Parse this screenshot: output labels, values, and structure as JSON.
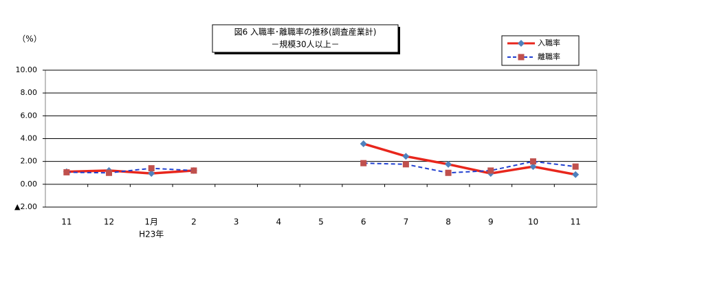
{
  "chart_data": {
    "type": "line",
    "title": "図6 入職率･離職率の推移(調査産業計)",
    "subtitle": "－規模30人以上－",
    "y_label": "（%）",
    "annotations": [
      "H23年"
    ],
    "categories": [
      "11",
      "12",
      "1月",
      "2",
      "3",
      "4",
      "5",
      "6",
      "7",
      "8",
      "9",
      "10",
      "11"
    ],
    "series": [
      {
        "name": "入職率",
        "color": "#e8261c",
        "marker_color": "#4f81bd",
        "marker": "diamond",
        "dash": false,
        "values": [
          1.1,
          1.2,
          0.95,
          1.2,
          null,
          null,
          null,
          3.55,
          2.45,
          1.75,
          0.95,
          1.55,
          0.85
        ]
      },
      {
        "name": "離職率",
        "color": "#1f3fd0",
        "marker_color": "#c0504d",
        "marker": "square",
        "dash": true,
        "values": [
          1.05,
          1.0,
          1.4,
          1.2,
          null,
          null,
          null,
          1.85,
          1.75,
          1.0,
          1.2,
          2.0,
          1.55
        ]
      }
    ],
    "ylim": [
      -2,
      10
    ],
    "yticks": [
      {
        "value": -2,
        "label": "▲2.00"
      },
      {
        "value": 0,
        "label": "0.00"
      },
      {
        "value": 2,
        "label": "2.00"
      },
      {
        "value": 4,
        "label": "4.00"
      },
      {
        "value": 6,
        "label": "6.00"
      },
      {
        "value": 8,
        "label": "8.00"
      },
      {
        "value": 10,
        "label": "10.00"
      }
    ],
    "grid": true
  }
}
